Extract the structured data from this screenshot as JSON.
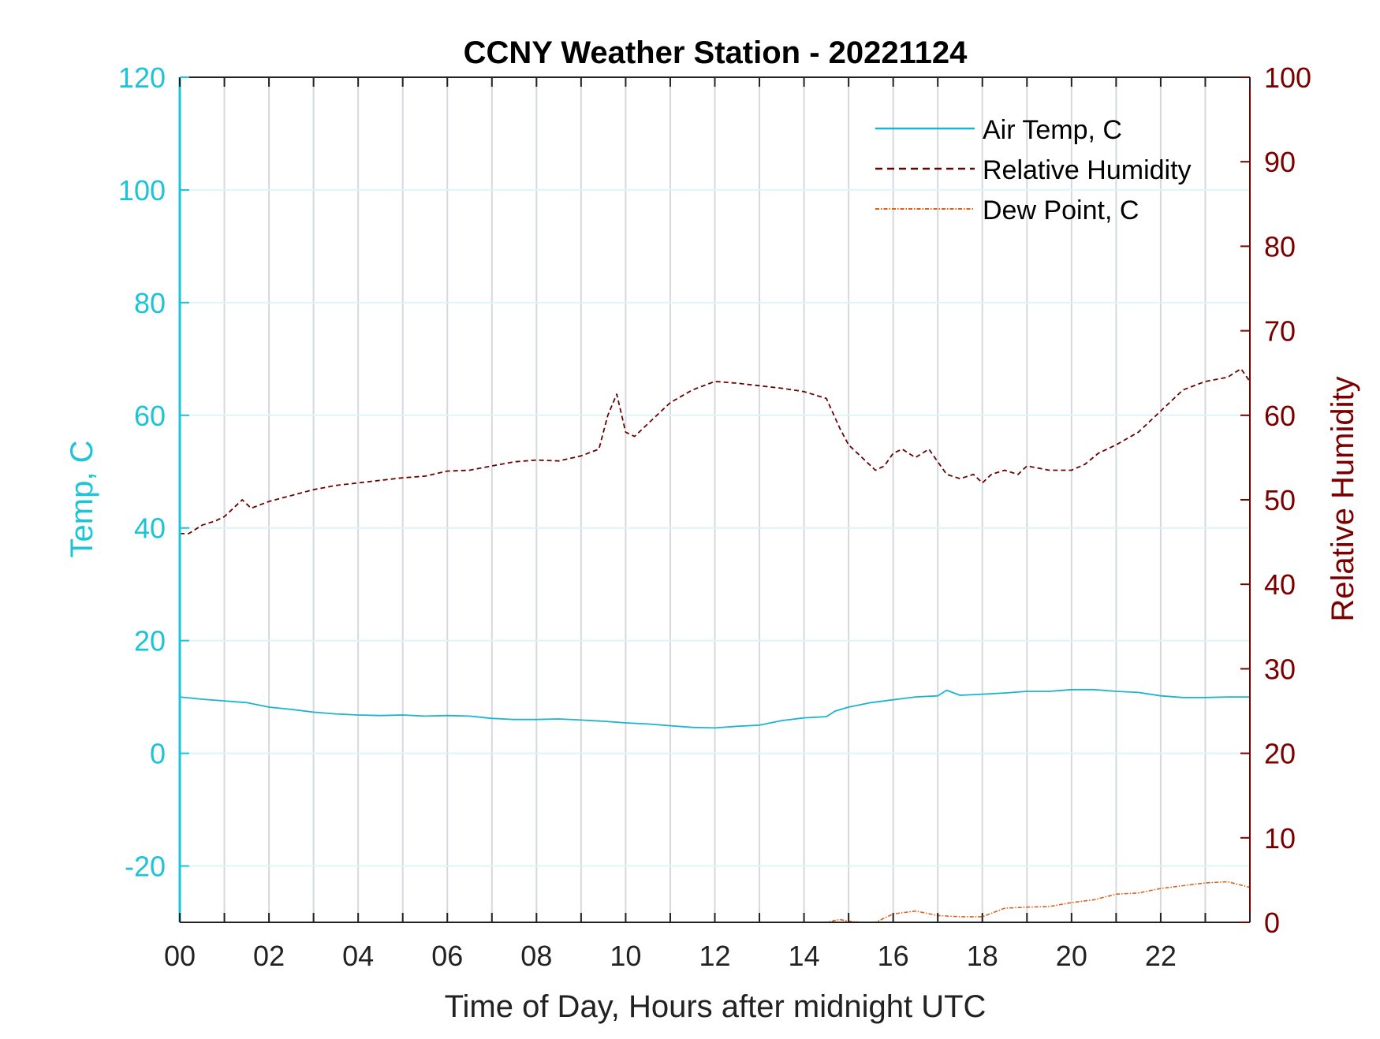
{
  "colors": {
    "temp_axis": "#1cc4d8",
    "rh_axis": "#7a0000",
    "air_temp": "#1ab4cf",
    "rel_humidity": "#6b0000",
    "dew_point": "#e0601a",
    "grid": "#d5d9dd",
    "x_axis": "#222222"
  },
  "chart_data": {
    "type": "line",
    "title": "CCNY Weather Station - 20221124",
    "xlabel": "Time of Day, Hours after midnight UTC",
    "ylabel_left": "Temp, C",
    "ylabel_right": "Relative Humidity",
    "xlim": [
      0,
      24
    ],
    "ylim_left": [
      -30,
      120
    ],
    "ylim_right": [
      0,
      100
    ],
    "x_ticks": [
      "00",
      "02",
      "04",
      "06",
      "08",
      "10",
      "12",
      "14",
      "16",
      "18",
      "20",
      "22"
    ],
    "x_tick_values": [
      0,
      2,
      4,
      6,
      8,
      10,
      12,
      14,
      16,
      18,
      20,
      22
    ],
    "y_ticks_left": [
      "-20",
      "0",
      "20",
      "40",
      "60",
      "80",
      "100",
      "120"
    ],
    "y_tick_values_left": [
      -20,
      0,
      20,
      40,
      60,
      80,
      100,
      120
    ],
    "y_ticks_right": [
      "0",
      "10",
      "20",
      "30",
      "40",
      "50",
      "60",
      "70",
      "80",
      "90",
      "100"
    ],
    "y_tick_values_right": [
      0,
      10,
      20,
      30,
      40,
      50,
      60,
      70,
      80,
      90,
      100
    ],
    "grid": true,
    "legend_position": "top-right",
    "series": [
      {
        "name": "Air Temp, C",
        "axis": "left",
        "style": "solid",
        "x": [
          0,
          0.5,
          1,
          1.5,
          2,
          2.5,
          3,
          3.5,
          4,
          4.5,
          5,
          5.5,
          6,
          6.5,
          7,
          7.5,
          8,
          8.5,
          9,
          9.5,
          10,
          10.5,
          11,
          11.5,
          12,
          12.5,
          13,
          13.5,
          14,
          14.5,
          14.7,
          15,
          15.5,
          16,
          16.5,
          17,
          17.2,
          17.5,
          18,
          18.5,
          19,
          19.5,
          20,
          20.5,
          21,
          21.5,
          22,
          22.5,
          23,
          23.5,
          24
        ],
        "y": [
          10,
          9.6,
          9.3,
          9.0,
          8.2,
          7.8,
          7.3,
          7.0,
          6.8,
          6.7,
          6.8,
          6.6,
          6.7,
          6.6,
          6.2,
          6.0,
          6.0,
          6.1,
          5.9,
          5.7,
          5.4,
          5.2,
          4.9,
          4.6,
          4.5,
          4.8,
          5.0,
          5.8,
          6.3,
          6.5,
          7.5,
          8.2,
          9.0,
          9.5,
          10.0,
          10.2,
          11.2,
          10.3,
          10.5,
          10.7,
          11.0,
          11.0,
          11.3,
          11.3,
          11.0,
          10.8,
          10.2,
          9.9,
          9.9,
          10.0,
          10.0
        ]
      },
      {
        "name": "Relative Humidity",
        "axis": "right",
        "style": "dashed",
        "x": [
          0,
          0.2,
          0.5,
          0.8,
          1.0,
          1.2,
          1.4,
          1.6,
          2.0,
          2.5,
          3.0,
          3.5,
          4.0,
          4.5,
          5.0,
          5.5,
          6.0,
          6.5,
          7.0,
          7.5,
          8.0,
          8.5,
          9.0,
          9.4,
          9.6,
          9.8,
          10.0,
          10.2,
          10.5,
          11.0,
          11.5,
          12.0,
          12.5,
          13.0,
          13.5,
          14.0,
          14.5,
          14.8,
          15.0,
          15.3,
          15.6,
          15.8,
          16.0,
          16.2,
          16.5,
          16.8,
          17.0,
          17.2,
          17.5,
          17.8,
          18.0,
          18.2,
          18.5,
          18.8,
          19.0,
          19.5,
          20.0,
          20.3,
          20.6,
          21.0,
          21.5,
          22.0,
          22.5,
          23.0,
          23.5,
          23.8,
          24.0
        ],
        "y": [
          46,
          46,
          47,
          47.5,
          48,
          49,
          50,
          49,
          49.8,
          50.5,
          51.2,
          51.7,
          52.0,
          52.3,
          52.6,
          52.8,
          53.4,
          53.5,
          54.0,
          54.5,
          54.7,
          54.6,
          55.2,
          56.0,
          60.0,
          62.5,
          58.0,
          57.5,
          59.0,
          61.5,
          63.0,
          64.0,
          63.8,
          63.5,
          63.2,
          62.8,
          62.0,
          58.5,
          56.5,
          55.0,
          53.5,
          54.0,
          55.5,
          56.0,
          55.0,
          56.0,
          54.5,
          53.0,
          52.5,
          53.0,
          52.0,
          53.0,
          53.5,
          53.0,
          54.0,
          53.5,
          53.5,
          54.2,
          55.5,
          56.5,
          58.0,
          60.5,
          63.0,
          64.0,
          64.5,
          65.5,
          64.0
        ]
      },
      {
        "name": "Dew Point, C",
        "axis": "left",
        "style": "dashdot",
        "x": [
          13.7,
          14.0,
          14.5,
          14.8,
          15.0,
          15.3,
          15.6,
          16.0,
          16.5,
          17.0,
          17.5,
          18.0,
          18.5,
          19.0,
          19.5,
          20.0,
          20.5,
          21.0,
          21.5,
          22.0,
          22.5,
          23.0,
          23.5,
          24.0
        ],
        "y": [
          -30.5,
          -30.8,
          -30.6,
          -29.5,
          -29.8,
          -30.5,
          -30.2,
          -28.5,
          -28.0,
          -28.8,
          -29.0,
          -29.0,
          -27.5,
          -27.3,
          -27.2,
          -26.5,
          -26.0,
          -25.0,
          -24.8,
          -24.0,
          -23.5,
          -23.0,
          -22.8,
          -23.8
        ]
      }
    ]
  }
}
